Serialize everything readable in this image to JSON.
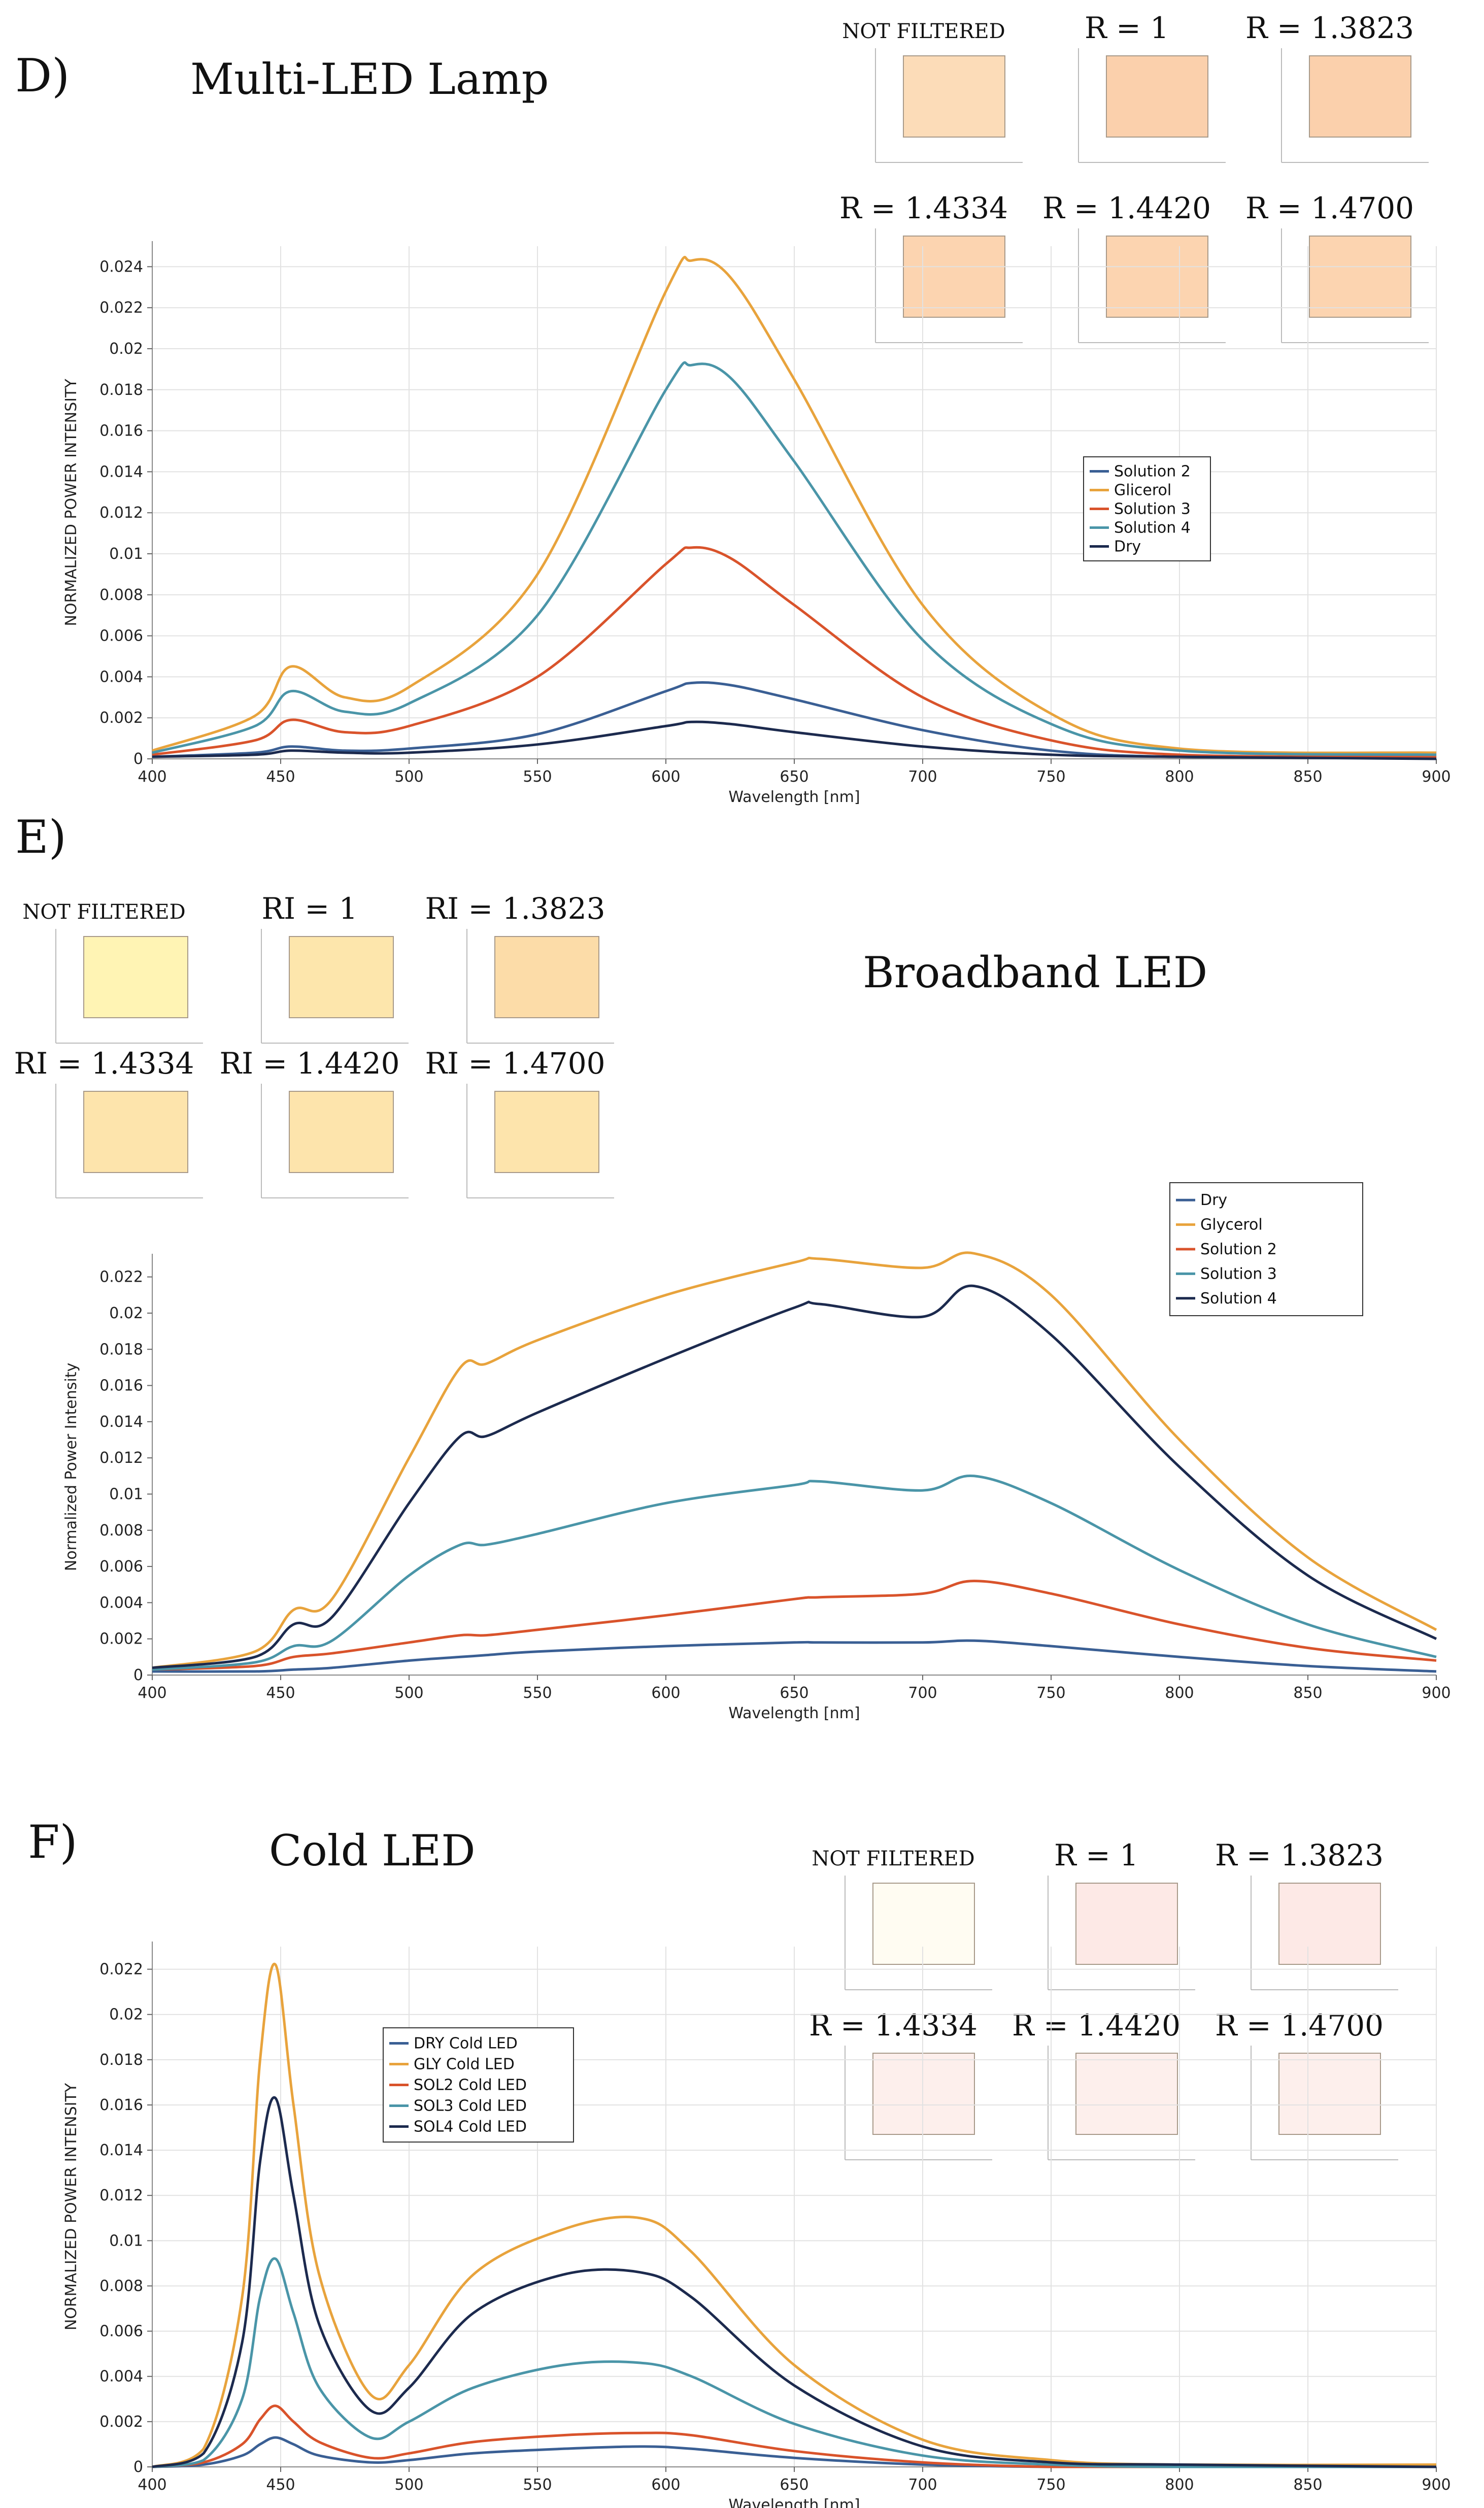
{
  "chart_data": [
    {
      "panel": "D)",
      "title": "Multi-LED Lamp",
      "type": "line",
      "xlabel": "Wavelength [nm]",
      "ylabel": "NORMALIZED POWER INTENSITY",
      "xlim": [
        400,
        900
      ],
      "ylim": [
        0,
        0.025
      ],
      "xticks": [
        400,
        450,
        500,
        550,
        600,
        650,
        700,
        750,
        800,
        850,
        900
      ],
      "yticks": [
        0,
        0.002,
        0.004,
        0.006,
        0.008,
        0.01,
        0.012,
        0.014,
        0.016,
        0.018,
        0.02,
        0.022,
        0.024
      ],
      "grid": true,
      "legend_position": "right-center",
      "swatches": [
        {
          "label": "NOT FILTERED",
          "color": "#fcdcb8"
        },
        {
          "label": "R = 1",
          "color": "#fbd0ac"
        },
        {
          "label": "R = 1.3823",
          "color": "#fbd0ac"
        },
        {
          "label": "R = 1.4334",
          "color": "#fcd4b0"
        },
        {
          "label": "R = 1.4420",
          "color": "#fcd4b0"
        },
        {
          "label": "R = 1.4700",
          "color": "#fcd4b0"
        }
      ],
      "x": [
        400,
        440,
        454,
        475,
        500,
        550,
        600,
        610,
        625,
        650,
        700,
        750,
        800,
        900
      ],
      "series": [
        {
          "name": "Solution 2",
          "color": "#3a5f94",
          "values": [
            0.0001,
            0.0003,
            0.0006,
            0.0004,
            0.0005,
            0.0012,
            0.0033,
            0.0037,
            0.0036,
            0.0029,
            0.0014,
            0.0004,
            0.0001,
            0.0001
          ]
        },
        {
          "name": "Glicerol",
          "color": "#e8a33c",
          "values": [
            0.0004,
            0.0021,
            0.0045,
            0.003,
            0.0035,
            0.009,
            0.0228,
            0.0243,
            0.0235,
            0.0185,
            0.0075,
            0.0022,
            0.0005,
            0.0003
          ]
        },
        {
          "name": "Solution 3",
          "color": "#d9532b",
          "values": [
            0.0002,
            0.0009,
            0.0019,
            0.0013,
            0.0016,
            0.004,
            0.0095,
            0.0103,
            0.0098,
            0.0075,
            0.003,
            0.0009,
            0.0002,
            0.0001
          ]
        },
        {
          "name": "Solution 4",
          "color": "#4a95a8",
          "values": [
            0.0003,
            0.0016,
            0.0033,
            0.0023,
            0.0027,
            0.007,
            0.018,
            0.0192,
            0.0186,
            0.0145,
            0.0058,
            0.0017,
            0.0004,
            0.0002
          ]
        },
        {
          "name": "Dry",
          "color": "#1c2a4e",
          "values": [
            0.0001,
            0.0002,
            0.0004,
            0.0003,
            0.0003,
            0.0007,
            0.0016,
            0.0018,
            0.0017,
            0.0013,
            0.0006,
            0.0002,
            0.0001,
            0.0
          ]
        }
      ]
    },
    {
      "panel": "E)",
      "title": "Broadband LED",
      "type": "line",
      "xlabel": "Wavelength [nm]",
      "ylabel": "Normalized Power Intensity",
      "xlim": [
        400,
        900
      ],
      "ylim": [
        0,
        0.023
      ],
      "xticks": [
        400,
        450,
        500,
        550,
        600,
        650,
        700,
        750,
        800,
        850,
        900
      ],
      "yticks": [
        0,
        0.002,
        0.004,
        0.006,
        0.008,
        0.01,
        0.012,
        0.014,
        0.016,
        0.018,
        0.02,
        0.022
      ],
      "grid": false,
      "legend_position": "top-right",
      "swatches": [
        {
          "label": "NOT FILTERED",
          "color": "#fff4b4"
        },
        {
          "label": "RI = 1",
          "color": "#fde6ac"
        },
        {
          "label": "RI = 1.3823",
          "color": "#fcdca8"
        },
        {
          "label": "RI = 1.4334",
          "color": "#fde4ac"
        },
        {
          "label": "RI = 1.4420",
          "color": "#fde4ac"
        },
        {
          "label": "RI = 1.4700",
          "color": "#fde4ac"
        }
      ],
      "x": [
        400,
        440,
        455,
        470,
        500,
        520,
        530,
        550,
        600,
        650,
        660,
        700,
        720,
        750,
        800,
        850,
        900
      ],
      "series": [
        {
          "name": "Dry",
          "color": "#3a5f94",
          "values": [
            0.0002,
            0.0002,
            0.0003,
            0.0004,
            0.0008,
            0.001,
            0.0011,
            0.0013,
            0.0016,
            0.0018,
            0.0018,
            0.0018,
            0.0019,
            0.0016,
            0.001,
            0.0005,
            0.0002
          ]
        },
        {
          "name": "Glycerol",
          "color": "#e8a33c",
          "values": [
            0.0004,
            0.0013,
            0.0036,
            0.0042,
            0.012,
            0.017,
            0.0172,
            0.0185,
            0.021,
            0.0228,
            0.023,
            0.0225,
            0.0233,
            0.021,
            0.013,
            0.0065,
            0.0025
          ]
        },
        {
          "name": "Solution 2",
          "color": "#d9532b",
          "values": [
            0.0003,
            0.0005,
            0.001,
            0.0012,
            0.0018,
            0.0022,
            0.0022,
            0.0025,
            0.0033,
            0.0042,
            0.0043,
            0.0045,
            0.0052,
            0.0045,
            0.0028,
            0.0015,
            0.0008
          ]
        },
        {
          "name": "Solution 3",
          "color": "#4a95a8",
          "values": [
            0.0003,
            0.0007,
            0.0016,
            0.0019,
            0.0055,
            0.0072,
            0.0072,
            0.0078,
            0.0095,
            0.0105,
            0.0107,
            0.0102,
            0.011,
            0.0095,
            0.0058,
            0.0028,
            0.001
          ]
        },
        {
          "name": "Solution 4",
          "color": "#1c2a4e",
          "values": [
            0.0004,
            0.001,
            0.0028,
            0.0032,
            0.0095,
            0.0132,
            0.0132,
            0.0145,
            0.0175,
            0.0203,
            0.0205,
            0.0198,
            0.0215,
            0.0188,
            0.0115,
            0.0055,
            0.002
          ]
        }
      ]
    },
    {
      "panel": "F)",
      "title": "Cold LED",
      "type": "line",
      "xlabel": "Wavelength [nm]",
      "ylabel": "NORMALIZED POWER INTENSITY",
      "xlim": [
        400,
        900
      ],
      "ylim": [
        0,
        0.023
      ],
      "xticks": [
        400,
        450,
        500,
        550,
        600,
        650,
        700,
        750,
        800,
        850,
        900
      ],
      "yticks": [
        0,
        0.002,
        0.004,
        0.006,
        0.008,
        0.01,
        0.012,
        0.014,
        0.016,
        0.018,
        0.02,
        0.022
      ],
      "grid": true,
      "legend_position": "top-left",
      "swatches": [
        {
          "label": "NOT FILTERED",
          "color": "#fffcf2"
        },
        {
          "label": "R = 1",
          "color": "#fde9e6"
        },
        {
          "label": "R = 1.3823",
          "color": "#fde9e6"
        },
        {
          "label": "R = 1.4334",
          "color": "#fdefec"
        },
        {
          "label": "R = 1.4420",
          "color": "#fdefec"
        },
        {
          "label": "R = 1.4700",
          "color": "#fdefec"
        }
      ],
      "x": [
        400,
        420,
        435,
        442,
        448,
        455,
        465,
        485,
        500,
        525,
        560,
        590,
        610,
        650,
        700,
        750,
        800,
        900
      ],
      "series": [
        {
          "name": "DRY Cold LED",
          "color": "#3a5f94",
          "values": [
            0.0,
            0.0001,
            0.0005,
            0.001,
            0.0013,
            0.001,
            0.0005,
            0.0002,
            0.0003,
            0.0006,
            0.0008,
            0.0009,
            0.0008,
            0.0004,
            0.0001,
            0.0,
            0.0,
            0.0
          ]
        },
        {
          "name": "GLY Cold LED",
          "color": "#e8a33c",
          "values": [
            0.0,
            0.0008,
            0.0075,
            0.018,
            0.0222,
            0.016,
            0.0085,
            0.0032,
            0.0045,
            0.0085,
            0.0105,
            0.011,
            0.0095,
            0.0045,
            0.0012,
            0.0003,
            0.0001,
            0.0001
          ]
        },
        {
          "name": "SOL2 Cold LED",
          "color": "#d9532b",
          "values": [
            0.0,
            0.0002,
            0.001,
            0.0021,
            0.0027,
            0.002,
            0.0011,
            0.0004,
            0.0006,
            0.0011,
            0.0014,
            0.0015,
            0.0014,
            0.0007,
            0.0002,
            0.0,
            0.0,
            0.0
          ]
        },
        {
          "name": "SOL3 Cold LED",
          "color": "#4a95a8",
          "values": [
            0.0,
            0.0003,
            0.003,
            0.0075,
            0.0092,
            0.0068,
            0.0035,
            0.0013,
            0.002,
            0.0035,
            0.0045,
            0.0046,
            0.004,
            0.0019,
            0.0005,
            0.0001,
            0.0,
            0.0
          ]
        },
        {
          "name": "SOL4 Cold LED",
          "color": "#1c2a4e",
          "values": [
            0.0,
            0.0006,
            0.0055,
            0.0135,
            0.0163,
            0.012,
            0.0063,
            0.0025,
            0.0035,
            0.0068,
            0.0085,
            0.0086,
            0.0075,
            0.0036,
            0.0009,
            0.0002,
            0.0001,
            0.0
          ]
        }
      ]
    }
  ]
}
